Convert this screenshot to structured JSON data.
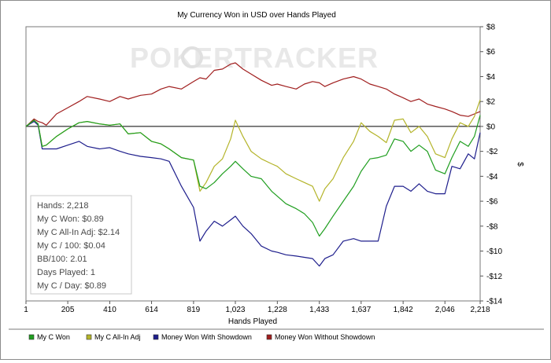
{
  "chart_data": {
    "type": "line",
    "title": "My Currency Won in USD over Hands Played",
    "xlabel": "Hands Played",
    "ylabel": "$",
    "xlim": [
      1,
      2218
    ],
    "ylim": [
      -14,
      8
    ],
    "x_ticks": [
      1,
      205,
      410,
      614,
      819,
      1023,
      1228,
      1433,
      1637,
      1842,
      2046,
      2218
    ],
    "x_tick_labels": [
      "1",
      "205",
      "410",
      "614",
      "819",
      "1,023",
      "1,228",
      "1,433",
      "1,637",
      "1,842",
      "2,046",
      "2,218"
    ],
    "y_ticks": [
      8,
      6,
      4,
      2,
      0,
      -2,
      -4,
      -6,
      -8,
      -10,
      -12,
      -14
    ],
    "y_tick_labels": [
      "$8",
      "$6",
      "$4",
      "$2",
      "$0",
      "-$2",
      "-$4",
      "-$6",
      "-$8",
      "-$10",
      "-$12",
      "-$14"
    ],
    "watermark": "POKERTRACKER",
    "series": [
      {
        "name": "My C Won",
        "color": "#1f9e1f",
        "x": [
          1,
          40,
          60,
          80,
          100,
          150,
          205,
          260,
          300,
          360,
          410,
          460,
          500,
          560,
          614,
          660,
          700,
          760,
          819,
          850,
          880,
          920,
          960,
          1000,
          1023,
          1060,
          1100,
          1150,
          1200,
          1228,
          1270,
          1320,
          1360,
          1400,
          1433,
          1460,
          1500,
          1550,
          1600,
          1637,
          1680,
          1720,
          1760,
          1800,
          1842,
          1880,
          1920,
          1960,
          2000,
          2046,
          2080,
          2120,
          2160,
          2190,
          2218
        ],
        "y": [
          0,
          0.5,
          0.2,
          -1.6,
          -1.5,
          -0.8,
          -0.2,
          0.3,
          0.4,
          0.2,
          0.1,
          0.2,
          -0.6,
          -0.5,
          -1.2,
          -1.4,
          -1.8,
          -2.5,
          -2.7,
          -4.8,
          -5,
          -4.5,
          -3.8,
          -3.2,
          -2.8,
          -3.4,
          -4,
          -4.2,
          -5.2,
          -5.6,
          -6.2,
          -6.6,
          -7,
          -7.7,
          -8.8,
          -8.2,
          -7.2,
          -6,
          -4.8,
          -3.6,
          -2.6,
          -2.5,
          -2.3,
          -1,
          -1.2,
          -2,
          -1.5,
          -2,
          -3.5,
          -3.8,
          -2.5,
          -1.2,
          -1.6,
          -0.8,
          0.9
        ]
      },
      {
        "name": "My C All-In Adj",
        "color": "#b4b42a",
        "x": [
          1,
          40,
          60,
          80,
          100,
          150,
          205,
          260,
          300,
          360,
          410,
          460,
          500,
          560,
          614,
          660,
          700,
          760,
          819,
          850,
          880,
          920,
          960,
          1000,
          1023,
          1060,
          1100,
          1150,
          1200,
          1228,
          1270,
          1320,
          1360,
          1400,
          1433,
          1460,
          1500,
          1550,
          1600,
          1637,
          1680,
          1720,
          1760,
          1800,
          1842,
          1880,
          1920,
          1960,
          2000,
          2046,
          2080,
          2120,
          2160,
          2190,
          2218
        ],
        "y": [
          0,
          0.5,
          0.2,
          -1.6,
          -1.5,
          -0.8,
          -0.2,
          0.3,
          0.4,
          0.2,
          0.1,
          0.2,
          -0.6,
          -0.5,
          -1.2,
          -1.4,
          -1.8,
          -2.5,
          -2.7,
          -5.2,
          -4.5,
          -3.2,
          -2.6,
          -1,
          0.5,
          -0.8,
          -2,
          -2.6,
          -3,
          -3.2,
          -3.8,
          -4.2,
          -4.5,
          -4.8,
          -6,
          -5,
          -4.2,
          -2.5,
          -1.2,
          0.3,
          -0.4,
          -0.8,
          -1.3,
          0.5,
          0.6,
          -0.5,
          0,
          -0.8,
          -2.2,
          -2.5,
          -1,
          0.3,
          0,
          0.8,
          2.14
        ]
      },
      {
        "name": "Money Won With Showdown",
        "color": "#1e1e8c",
        "x": [
          1,
          40,
          60,
          80,
          100,
          150,
          205,
          260,
          300,
          360,
          410,
          460,
          500,
          560,
          614,
          660,
          700,
          760,
          819,
          850,
          880,
          920,
          960,
          1000,
          1023,
          1060,
          1100,
          1150,
          1200,
          1228,
          1270,
          1320,
          1360,
          1400,
          1433,
          1460,
          1500,
          1550,
          1600,
          1637,
          1680,
          1720,
          1760,
          1800,
          1842,
          1880,
          1920,
          1960,
          2000,
          2046,
          2080,
          2120,
          2160,
          2190,
          2218
        ],
        "y": [
          0,
          0.4,
          0.1,
          -1.8,
          -1.8,
          -1.8,
          -1.5,
          -1.2,
          -1.6,
          -1.8,
          -1.7,
          -2,
          -2.2,
          -2.4,
          -2.5,
          -2.6,
          -2.8,
          -4.8,
          -6.5,
          -9.2,
          -8.4,
          -7.6,
          -8,
          -7.5,
          -7.2,
          -8,
          -8.6,
          -9.6,
          -10,
          -10.1,
          -10.3,
          -10.4,
          -10.5,
          -10.6,
          -11.2,
          -10.6,
          -10.3,
          -9.2,
          -9,
          -9.2,
          -9.2,
          -9.2,
          -6.4,
          -4.8,
          -4.8,
          -5.2,
          -4.6,
          -5.2,
          -5.4,
          -5.4,
          -3.2,
          -3.4,
          -2.2,
          -2.6,
          -0.5
        ]
      },
      {
        "name": "Money Won Without Showdown",
        "color": "#a01e1e",
        "x": [
          1,
          40,
          60,
          80,
          100,
          150,
          205,
          260,
          300,
          360,
          410,
          460,
          500,
          560,
          614,
          660,
          700,
          760,
          819,
          850,
          880,
          920,
          960,
          1000,
          1023,
          1060,
          1100,
          1150,
          1200,
          1228,
          1270,
          1320,
          1360,
          1400,
          1433,
          1460,
          1500,
          1550,
          1600,
          1637,
          1680,
          1720,
          1760,
          1800,
          1842,
          1880,
          1920,
          1960,
          2000,
          2046,
          2080,
          2120,
          2160,
          2190,
          2218
        ],
        "y": [
          0,
          0.6,
          0.4,
          0.3,
          0.1,
          1,
          1.5,
          2,
          2.4,
          2.2,
          2,
          2.4,
          2.2,
          2.5,
          2.6,
          3,
          3.2,
          3,
          3.6,
          3.9,
          3.8,
          4.5,
          4.6,
          5,
          5.1,
          4.6,
          4.2,
          3.7,
          3.3,
          3.4,
          3.2,
          3,
          3.4,
          3.6,
          3.5,
          3.2,
          3.5,
          3.8,
          4,
          3.8,
          3.4,
          3.2,
          3,
          2.6,
          2.3,
          2,
          2.2,
          1.8,
          1.6,
          1.4,
          1.2,
          0.9,
          0.8,
          1,
          1.2
        ]
      }
    ],
    "stats": [
      "Hands: 2,218",
      "My C Won: $0.89",
      "My C All-In Adj: $2.14",
      "My C / 100: $0.04",
      "BB/100: 2.01",
      "Days Played: 1",
      "My C / Day: $0.89"
    ]
  }
}
